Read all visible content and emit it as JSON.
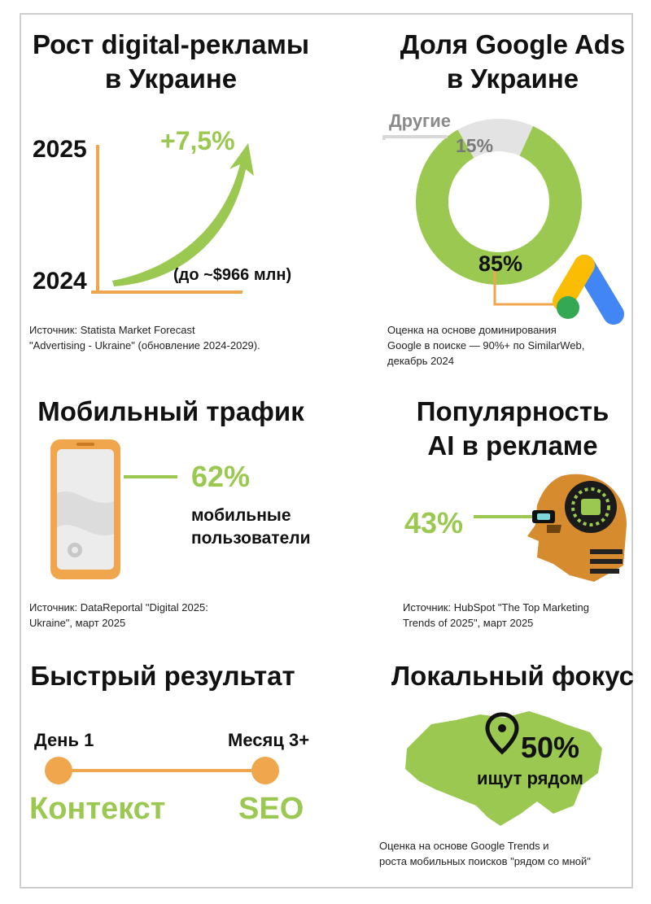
{
  "growth": {
    "title_line1": "Рост digital-рекламы",
    "title_line2": "в Украине",
    "year_top": "2025",
    "year_bottom": "2024",
    "growth_value": "+7,5%",
    "amount_note": "(до ~$966 млн)",
    "source_line1": "Источник: Statista Market Forecast",
    "source_line2": "\"Advertising - Ukraine\" (обновление 2024-2029)."
  },
  "google_ads": {
    "title_line1": "Доля Google Ads",
    "title_line2": "в Украине",
    "other_label": "Другие",
    "other_value": "15%",
    "main_value": "85%",
    "share_main": 85,
    "share_other": 15,
    "color_main": "#9bc850",
    "color_other": "#e3e3e3",
    "source_line1": "Оценка на основе доминирования",
    "source_line2": "Google в поиске — 90%+ по SimilarWeb,",
    "source_line3": "декабрь 2024"
  },
  "mobile": {
    "title": "Мобильный трафик",
    "value": "62%",
    "label_line1": "мобильные",
    "label_line2": "пользователи",
    "source_line1": "Источник: DataReportal \"Digital 2025:",
    "source_line2": "Ukraine\", март 2025"
  },
  "ai": {
    "title_line1": "Популярность",
    "title_line2": "AI в рекламе",
    "value": "43%",
    "source_line1": "Источник: HubSpot \"The Top Marketing",
    "source_line2": "Trends of 2025\", март 2025"
  },
  "speed": {
    "title": "Быстрый результат",
    "start_label": "День 1",
    "end_label": "Месяц 3+",
    "start_channel": "Контекст",
    "end_channel": "SEO"
  },
  "local": {
    "title": "Локальный фокус",
    "value": "50%",
    "label": "ищут рядом",
    "source_line1": "Оценка на основе Google Trends и",
    "source_line2": "роста мобильных поисков \"рядом со мной\""
  },
  "colors": {
    "accent_orange": "#f0a64c",
    "accent_green": "#9bc850"
  }
}
